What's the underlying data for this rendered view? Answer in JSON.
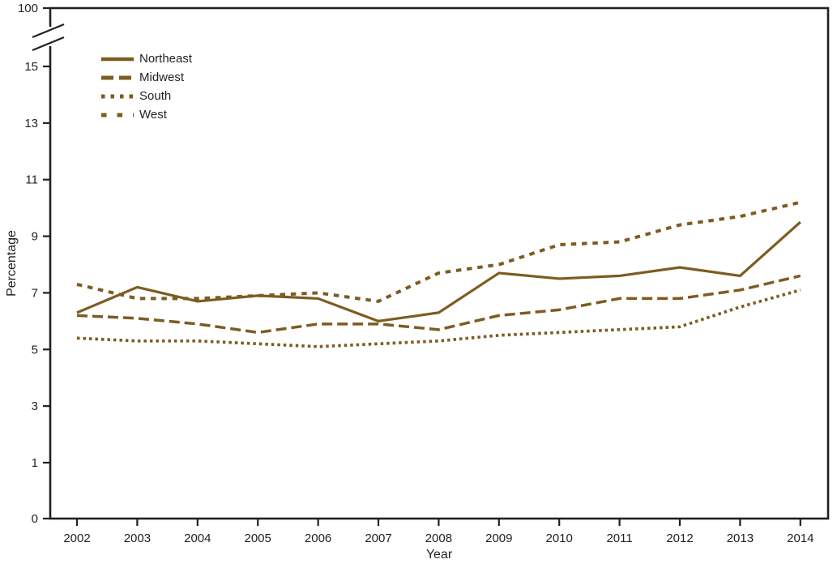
{
  "figure": {
    "background_color": "#ffffff",
    "axis_color": "#231f20",
    "line_color": "#7d5c21",
    "y_axis_title": "Percentage",
    "x_axis_title": "Year"
  },
  "chart_data": {
    "type": "line",
    "title": "",
    "xlabel": "Year",
    "ylabel": "Percentage",
    "x": [
      2002,
      2003,
      2004,
      2005,
      2006,
      2007,
      2008,
      2009,
      2010,
      2011,
      2012,
      2013,
      2014
    ],
    "x_tick_labels": [
      "2002",
      "2003",
      "2004",
      "2005",
      "2006",
      "2007",
      "2008",
      "2009",
      "2010",
      "2011",
      "2012",
      "2013",
      "2014"
    ],
    "y_tick_labels": [
      "0",
      "1",
      "3",
      "5",
      "7",
      "9",
      "11",
      "13",
      "15",
      "100"
    ],
    "y_axis_break": true,
    "y_axis_break_between": [
      "15",
      "100"
    ],
    "ylim": [
      0,
      15
    ],
    "grid": false,
    "legend_position": "top-left-inside",
    "line_color": "#7d5c21",
    "series": [
      {
        "name": "Northeast",
        "style": "solid",
        "values": [
          6.3,
          7.2,
          6.7,
          6.9,
          6.8,
          6.0,
          6.3,
          7.7,
          7.5,
          7.6,
          7.9,
          7.6,
          9.5
        ]
      },
      {
        "name": "Midwest",
        "style": "long-dash",
        "values": [
          6.2,
          6.1,
          5.9,
          5.6,
          5.9,
          5.9,
          5.7,
          6.2,
          6.4,
          6.8,
          6.8,
          7.1,
          7.6
        ]
      },
      {
        "name": "South",
        "style": "dot",
        "values": [
          5.4,
          5.3,
          5.3,
          5.2,
          5.1,
          5.2,
          5.3,
          5.5,
          5.6,
          5.7,
          5.8,
          6.5,
          7.1
        ]
      },
      {
        "name": "West",
        "style": "medium-dash",
        "values": [
          7.3,
          6.8,
          6.8,
          6.9,
          7.0,
          6.7,
          7.7,
          8.0,
          8.7,
          8.8,
          9.4,
          9.7,
          10.2
        ]
      }
    ]
  }
}
